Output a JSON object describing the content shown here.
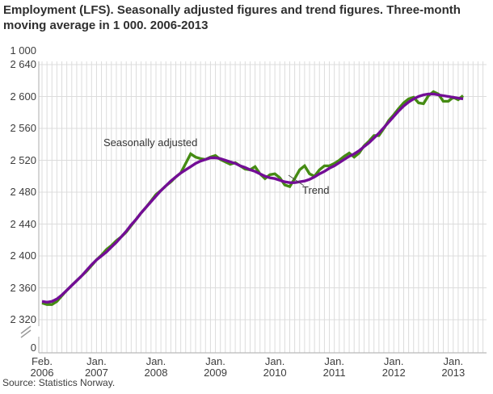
{
  "title": "Employment (LFS). Seasonally adjusted figures and trend figures. Three-month moving average in 1 000. 2006-2013",
  "source": "Source: Statistics Norway.",
  "colors": {
    "seasonally_adjusted": "#458B13",
    "trend": "#730D96",
    "gridline": "#dcdcdc",
    "axis": "#b9b9b9",
    "text": "#3d3d3d"
  },
  "chart_data": {
    "type": "line",
    "title": "Employment (LFS). Seasonally adjusted figures and trend figures. Three-month moving average in 1 000. 2006-2013",
    "unit": "1 000",
    "frequency": "monthly",
    "grid": "on",
    "ylim": [
      2320,
      2640
    ],
    "broken_y_axis": true,
    "y_axis": {
      "unit_label": "1 000",
      "tick_values": [
        2640,
        2600,
        2560,
        2520,
        2480,
        2440,
        2400,
        2360,
        2320
      ],
      "tick_labels": [
        "2 640",
        "2 600",
        "2 560",
        "2 520",
        "2 480",
        "2 440",
        "2 400",
        "2 360",
        "2 320"
      ],
      "zero_label": "0"
    },
    "x_axis": {
      "ticks": [
        {
          "month": "Feb.",
          "year": "2006",
          "index": 0
        },
        {
          "month": "Jan.",
          "year": "2007",
          "index": 11
        },
        {
          "month": "Jan.",
          "year": "2008",
          "index": 23
        },
        {
          "month": "Jan.",
          "year": "2009",
          "index": 35
        },
        {
          "month": "Jan.",
          "year": "2010",
          "index": 47
        },
        {
          "month": "Jan.",
          "year": "2011",
          "index": 59
        },
        {
          "month": "Jan.",
          "year": "2012",
          "index": 71
        },
        {
          "month": "Jan.",
          "year": "2013",
          "index": 83
        }
      ]
    },
    "x": [
      "2006-02",
      "2006-03",
      "2006-04",
      "2006-05",
      "2006-06",
      "2006-07",
      "2006-08",
      "2006-09",
      "2006-10",
      "2006-11",
      "2006-12",
      "2007-01",
      "2007-02",
      "2007-03",
      "2007-04",
      "2007-05",
      "2007-06",
      "2007-07",
      "2007-08",
      "2007-09",
      "2007-10",
      "2007-11",
      "2007-12",
      "2008-01",
      "2008-02",
      "2008-03",
      "2008-04",
      "2008-05",
      "2008-06",
      "2008-07",
      "2008-08",
      "2008-09",
      "2008-10",
      "2008-11",
      "2008-12",
      "2009-01",
      "2009-02",
      "2009-03",
      "2009-04",
      "2009-05",
      "2009-06",
      "2009-07",
      "2009-08",
      "2009-09",
      "2009-10",
      "2009-11",
      "2009-12",
      "2010-01",
      "2010-02",
      "2010-03",
      "2010-04",
      "2010-05",
      "2010-06",
      "2010-07",
      "2010-08",
      "2010-09",
      "2010-10",
      "2010-11",
      "2010-12",
      "2011-01",
      "2011-02",
      "2011-03",
      "2011-04",
      "2011-05",
      "2011-06",
      "2011-07",
      "2011-08",
      "2011-09",
      "2011-10",
      "2011-11",
      "2011-12",
      "2012-01",
      "2012-02",
      "2012-03",
      "2012-04",
      "2012-05",
      "2012-06",
      "2012-07",
      "2012-08",
      "2012-09",
      "2012-10",
      "2012-11",
      "2012-12",
      "2013-01",
      "2013-02",
      "2013-03"
    ],
    "series": [
      {
        "name": "Seasonally adjusted",
        "color": "#458B13",
        "values": [
          2341,
          2339,
          2339,
          2343,
          2350,
          2357,
          2363,
          2369,
          2375,
          2381,
          2388,
          2395,
          2401,
          2408,
          2413,
          2419,
          2424,
          2430,
          2438,
          2446,
          2454,
          2461,
          2469,
          2477,
          2482,
          2488,
          2493,
          2499,
          2504,
          2516,
          2528,
          2524,
          2522,
          2521,
          2524,
          2526,
          2521,
          2518,
          2515,
          2517,
          2513,
          2509,
          2508,
          2512,
          2503,
          2497,
          2502,
          2503,
          2498,
          2489,
          2487,
          2497,
          2508,
          2513,
          2503,
          2500,
          2508,
          2513,
          2513,
          2516,
          2520,
          2525,
          2529,
          2524,
          2529,
          2538,
          2544,
          2551,
          2551,
          2560,
          2570,
          2577,
          2585,
          2592,
          2597,
          2599,
          2592,
          2591,
          2601,
          2606,
          2603,
          2594,
          2594,
          2599,
          2596,
          2601
        ]
      },
      {
        "name": "Trend",
        "color": "#730D96",
        "values": [
          2343,
          2342,
          2343,
          2346,
          2351,
          2357,
          2363,
          2369,
          2375,
          2382,
          2389,
          2395,
          2400,
          2405,
          2411,
          2417,
          2424,
          2431,
          2439,
          2446,
          2454,
          2461,
          2468,
          2475,
          2482,
          2488,
          2494,
          2499,
          2504,
          2508,
          2512,
          2516,
          2519,
          2521,
          2523,
          2523,
          2522,
          2520,
          2518,
          2516,
          2513,
          2511,
          2508,
          2506,
          2503,
          2500,
          2498,
          2497,
          2495,
          2493,
          2492,
          2492,
          2493,
          2494,
          2496,
          2499,
          2503,
          2506,
          2510,
          2513,
          2517,
          2521,
          2525,
          2528,
          2532,
          2537,
          2542,
          2548,
          2554,
          2561,
          2568,
          2575,
          2582,
          2588,
          2593,
          2597,
          2600,
          2602,
          2603,
          2603,
          2602,
          2601,
          2600,
          2599,
          2598,
          2597
        ]
      }
    ],
    "annotations": {
      "seasonally_adjusted": "Seasonally adjusted",
      "trend": "Trend"
    },
    "legend_position": "inline-annotations"
  }
}
